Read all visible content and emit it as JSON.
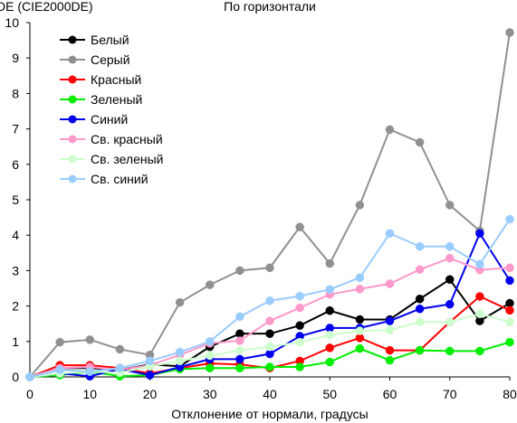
{
  "chart_data": {
    "type": "line",
    "title": "По горизонтали",
    "ylabel": "DE (CIE2000DE)",
    "xlabel": "Отклонение от нормали, градусы",
    "x": [
      0,
      5,
      10,
      15,
      20,
      25,
      30,
      35,
      40,
      45,
      50,
      55,
      60,
      65,
      70,
      75,
      80
    ],
    "xlim": [
      0,
      80
    ],
    "ylim": [
      0,
      10
    ],
    "x_ticks": [
      0,
      10,
      20,
      30,
      40,
      50,
      60,
      70,
      80
    ],
    "y_ticks": [
      0,
      1,
      2,
      3,
      4,
      5,
      6,
      7,
      8,
      9,
      10
    ],
    "grid": false,
    "legend_position": "top-left",
    "series": [
      {
        "name": "Белый",
        "color": "#000000",
        "values": [
          0,
          0.25,
          0.25,
          0.2,
          0.35,
          0.3,
          0.85,
          1.22,
          1.22,
          1.45,
          1.87,
          1.62,
          1.62,
          2.2,
          2.75,
          1.58,
          2.08
        ]
      },
      {
        "name": "Серый",
        "color": "#909090",
        "values": [
          0,
          0.98,
          1.05,
          0.78,
          0.62,
          2.1,
          2.6,
          3.0,
          3.08,
          4.23,
          3.2,
          4.85,
          6.98,
          6.62,
          4.85,
          4.12,
          9.72
        ]
      },
      {
        "name": "Красный",
        "color": "#ff0000",
        "values": [
          0,
          0.33,
          0.33,
          0.25,
          0.1,
          0.25,
          0.38,
          0.35,
          0.25,
          0.45,
          0.82,
          1.1,
          0.75,
          0.75,
          1.55,
          2.27,
          1.88
        ]
      },
      {
        "name": "Зеленый",
        "color": "#00ee00",
        "values": [
          0,
          0.05,
          0.15,
          0.02,
          0.05,
          0.22,
          0.25,
          0.25,
          0.28,
          0.28,
          0.42,
          0.8,
          0.47,
          0.75,
          0.73,
          0.73,
          0.98
        ]
      },
      {
        "name": "Синий",
        "color": "#0000ee",
        "values": [
          0,
          0.1,
          0.02,
          0.22,
          0.05,
          0.28,
          0.5,
          0.5,
          0.65,
          1.15,
          1.38,
          1.38,
          1.58,
          1.92,
          2.05,
          4.05,
          2.72
        ]
      },
      {
        "name": "Св. красный",
        "color": "#ff99cc",
        "values": [
          0,
          0.25,
          0.28,
          0.2,
          0.33,
          0.62,
          0.95,
          1.02,
          1.58,
          1.95,
          2.33,
          2.48,
          2.63,
          3.03,
          3.35,
          3.02,
          3.08
        ]
      },
      {
        "name": "Св. зеленый",
        "color": "#ccffcc",
        "values": [
          0,
          0.1,
          0.15,
          0.12,
          0.3,
          0.45,
          0.6,
          0.75,
          0.85,
          0.98,
          1.18,
          1.3,
          1.32,
          1.55,
          1.55,
          1.78,
          1.55
        ]
      },
      {
        "name": "Св. синий",
        "color": "#99ccff",
        "values": [
          0,
          0.2,
          0.15,
          0.25,
          0.45,
          0.7,
          1.0,
          1.7,
          2.15,
          2.28,
          2.47,
          2.8,
          4.05,
          3.68,
          3.68,
          3.18,
          4.45
        ]
      }
    ]
  }
}
